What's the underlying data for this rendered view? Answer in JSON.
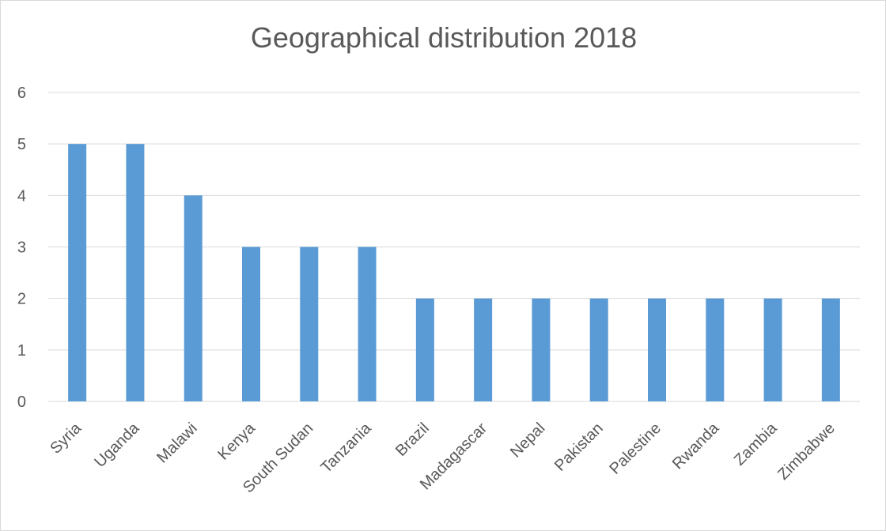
{
  "chart_data": {
    "type": "bar",
    "title": "Geographical distribution 2018",
    "xlabel": "",
    "ylabel": "",
    "categories": [
      "Syria",
      "Uganda",
      "Malawi",
      "Kenya",
      "South Sudan",
      "Tanzania",
      "Brazil",
      "Madagascar",
      "Nepal",
      "Pakistan",
      "Palestine",
      "Rwanda",
      "Zambia",
      "Zimbabwe"
    ],
    "values": [
      5,
      5,
      4,
      3,
      3,
      3,
      2,
      2,
      2,
      2,
      2,
      2,
      2,
      2
    ],
    "ylim": [
      0,
      6
    ],
    "yticks": [
      "0",
      "1",
      "2",
      "3",
      "4",
      "5",
      "6"
    ],
    "grid": true,
    "legend": "none",
    "colors": {
      "bar": "#5b9bd5",
      "grid": "#d9d9d9",
      "text": "#595959"
    }
  }
}
